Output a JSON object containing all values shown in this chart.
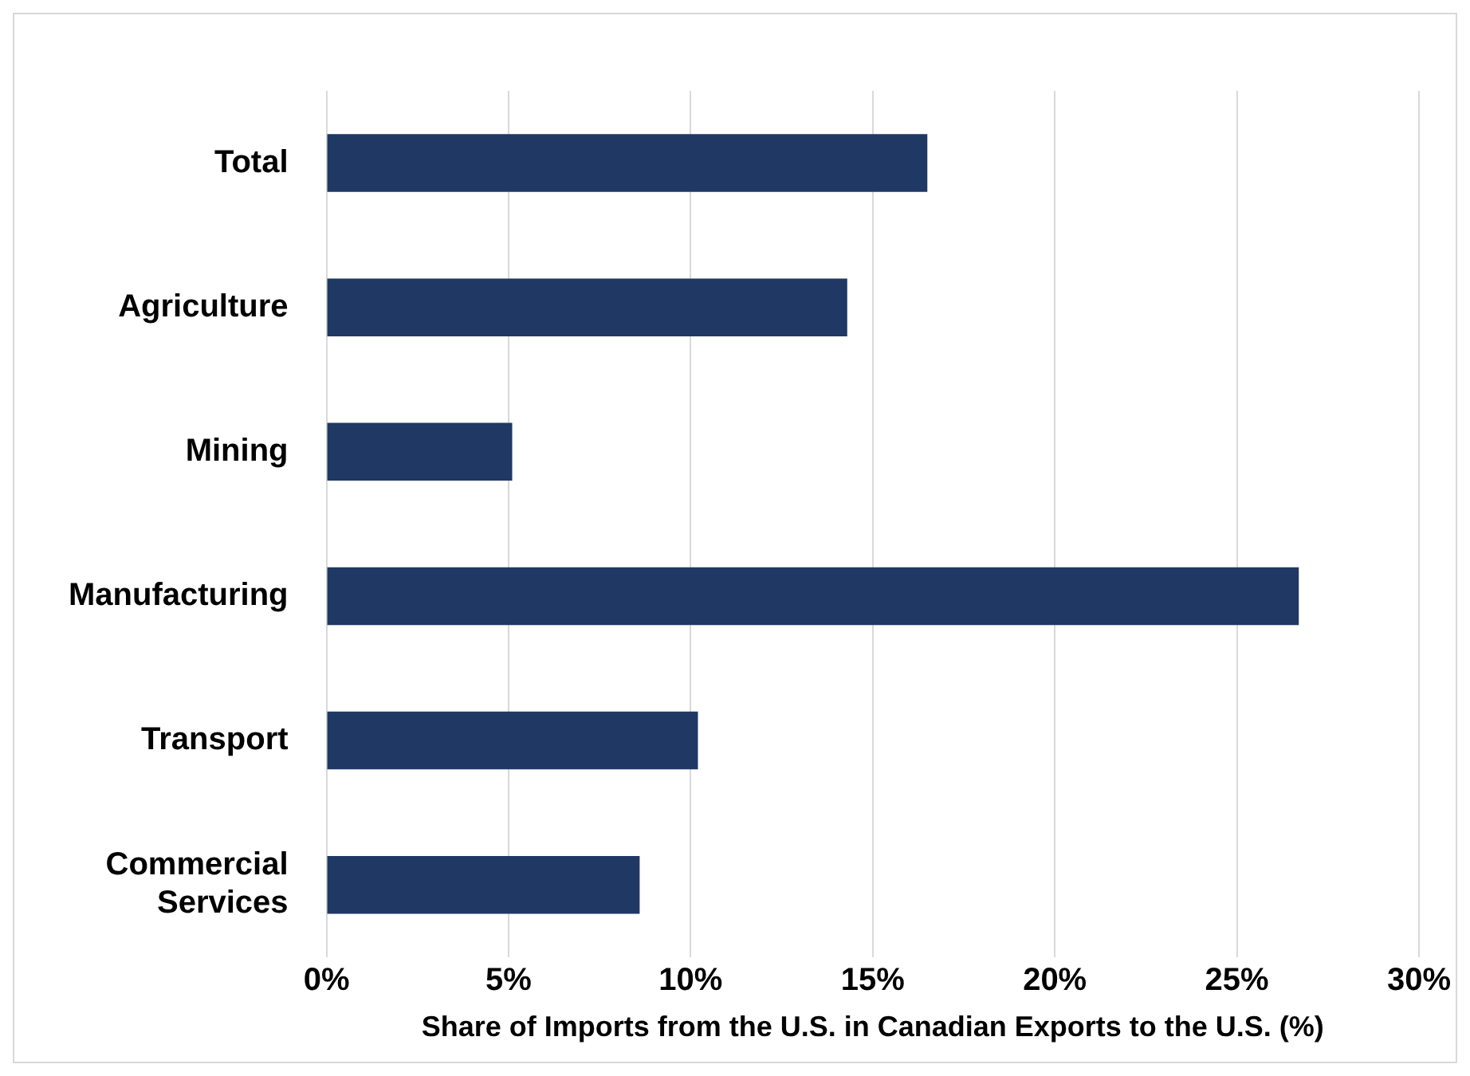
{
  "chart_data": {
    "type": "bar",
    "orientation": "horizontal",
    "xlabel": "Share of Imports from the U.S. in Canadian Exports to the U.S. (%)",
    "categories": [
      "Total",
      "Agriculture",
      "Mining",
      "Manufacturing",
      "Transport",
      "Commercial Services"
    ],
    "values": [
      16.5,
      14.3,
      5.1,
      26.7,
      10.2,
      8.6
    ],
    "color": "#1f3864",
    "xlim": [
      0,
      30
    ],
    "xticks": [
      {
        "value": 0,
        "label": "0%"
      },
      {
        "value": 5,
        "label": "5%"
      },
      {
        "value": 10,
        "label": "10%"
      },
      {
        "value": 15,
        "label": "15%"
      },
      {
        "value": 20,
        "label": "20%"
      },
      {
        "value": 25,
        "label": "25%"
      },
      {
        "value": 30,
        "label": "30%"
      }
    ],
    "grid": "x"
  }
}
